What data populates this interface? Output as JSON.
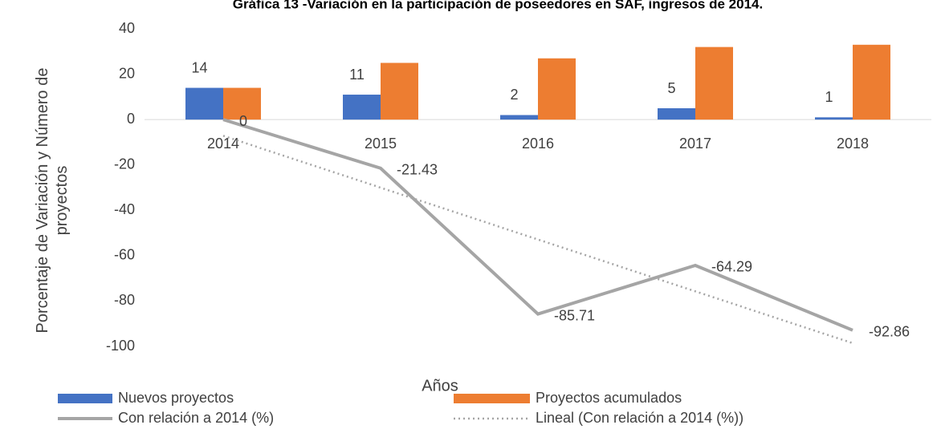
{
  "chart_data": {
    "type": "bar-line",
    "title": "Gráfica 13 -Variación en la participación de poseedores en SAF, ingresos de 2014.",
    "x_label": "Años",
    "y_label": "Porcentaje de Variación y Número de proyectos",
    "categories": [
      "2014",
      "2015",
      "2016",
      "2017",
      "2018"
    ],
    "series": [
      {
        "name": "Nuevos proyectos",
        "kind": "bar",
        "color": "#4472c4",
        "values": [
          14,
          11,
          2,
          5,
          1
        ],
        "data_labels": true
      },
      {
        "name": "Proyectos acumulados",
        "kind": "bar",
        "color": "#ed7d31",
        "values": [
          14,
          25,
          27,
          32,
          33
        ],
        "data_labels": false
      },
      {
        "name": "Con relación a 2014 (%)",
        "kind": "line",
        "color": "#a5a5a5",
        "values": [
          0,
          -21.43,
          -85.71,
          -64.29,
          -92.86
        ],
        "data_labels": true
      },
      {
        "name": "Lineal (Con relación a 2014 (%))",
        "kind": "trend",
        "color": "#a5a5a5",
        "values": [
          -7.14,
          -30,
          -52.86,
          -75.72,
          -98.57
        ],
        "data_labels": false
      }
    ],
    "ylim": [
      -100,
      40
    ],
    "yticks": [
      -100,
      -80,
      -60,
      -40,
      -20,
      0,
      20,
      40
    ],
    "grid": false
  }
}
